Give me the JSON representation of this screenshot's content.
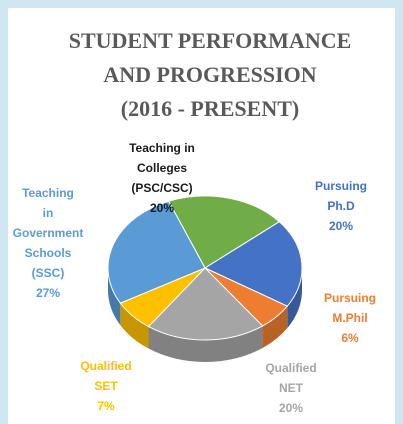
{
  "chart_data": {
    "type": "pie",
    "title": "STUDENT PERFORMANCE AND PROGRESSION (2016 - PRESENT)",
    "categories": [
      "Teaching in Colleges (PSC/CSC)",
      "Pursuing Ph.D",
      "Pursuing M.Phil",
      "Qualified NET",
      "Qualified SET",
      "Teaching in Government Schools (SSC)"
    ],
    "values": [
      20,
      20,
      6,
      20,
      7,
      27
    ],
    "value_labels": [
      "20%",
      "20%",
      "6%",
      "20%",
      "7%",
      "27%"
    ],
    "colors": [
      "#70ad47",
      "#4472c4",
      "#ed7d31",
      "#a5a5a5",
      "#ffc000",
      "#5b9bd5"
    ],
    "label_colors": [
      "#1a1a1a",
      "#4472c4",
      "#ed7d31",
      "#a5a5a5",
      "#ffc000",
      "#5b9bd5"
    ]
  }
}
